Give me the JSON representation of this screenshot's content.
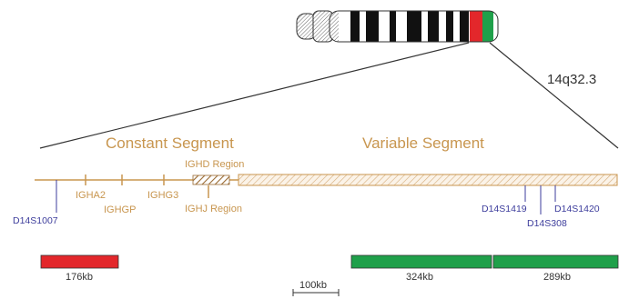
{
  "chromosome": {
    "band_label": "14q32.3",
    "highlight_colors": {
      "red": "#e3272b",
      "green": "#1fa04a"
    }
  },
  "locus": {
    "constant_segment_title": "Constant Segment",
    "variable_segment_title": "Variable Segment",
    "genes": {
      "igha2": "IGHA2",
      "ighgp": "IGHGP",
      "ighg3": "IGHG3",
      "ighd_region": "IGHD Region",
      "ighj_region": "IGHJ Region"
    },
    "markers": {
      "d14s1007": "D14S1007",
      "d14s1419": "D14S1419",
      "d14s308": "D14S308",
      "d14s1420": "D14S1420"
    },
    "colors": {
      "locus": "#c8964f",
      "markers": "#3d3d9c"
    }
  },
  "probes": {
    "red_probe": {
      "label": "176kb",
      "color": "#e3272b"
    },
    "green_probe_left": {
      "label": "324kb",
      "color": "#1fa04a"
    },
    "green_probe_right": {
      "label": "289kb",
      "color": "#1fa04a"
    }
  },
  "scale": {
    "label": "100kb"
  }
}
